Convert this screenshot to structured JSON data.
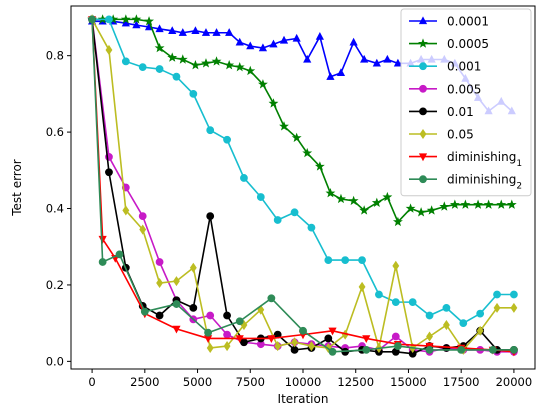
{
  "chart_data": {
    "type": "line",
    "xlabel": "Iteration",
    "ylabel": "Test error",
    "xlim": [
      -1000,
      21000
    ],
    "ylim": [
      -0.02,
      0.93
    ],
    "xticks": [
      0,
      2500,
      5000,
      7500,
      10000,
      12500,
      15000,
      17500,
      20000
    ],
    "xtick_labels": [
      "0",
      "2500",
      "5000",
      "7500",
      "10000",
      "12500",
      "15000",
      "17500",
      "20000"
    ],
    "yticks": [
      0.0,
      0.2,
      0.4,
      0.6,
      0.8
    ],
    "ytick_labels": [
      "0.0",
      "0.2",
      "0.4",
      "0.6",
      "0.8"
    ],
    "grid": false,
    "legend_position": "top-right",
    "series": [
      {
        "name": "0.0001",
        "label_html": "0.0001",
        "color": "#0000ff",
        "marker": "triangle-up",
        "x": [
          0,
          500,
          1000,
          1600,
          2100,
          2700,
          3200,
          3800,
          4300,
          4900,
          5400,
          5900,
          6500,
          7000,
          7500,
          8100,
          8600,
          9100,
          9700,
          10200,
          10800,
          11300,
          11800,
          12400,
          12900,
          13500,
          14000,
          14500,
          15100,
          15600,
          16100,
          16700,
          17200,
          17700,
          18300,
          18800,
          19400,
          19900
        ],
        "values": [
          0.89,
          0.89,
          0.89,
          0.885,
          0.88,
          0.875,
          0.87,
          0.865,
          0.86,
          0.865,
          0.86,
          0.86,
          0.86,
          0.835,
          0.825,
          0.82,
          0.83,
          0.84,
          0.845,
          0.79,
          0.85,
          0.745,
          0.755,
          0.835,
          0.79,
          0.78,
          0.79,
          0.78,
          0.78,
          0.79,
          0.79,
          0.79,
          0.78,
          0.74,
          0.69,
          0.655,
          0.68,
          0.655
        ]
      },
      {
        "name": "0.0005",
        "label_html": "0.0005",
        "color": "#008000",
        "marker": "star",
        "x": [
          0,
          500,
          1000,
          1600,
          2100,
          2700,
          3200,
          3800,
          4300,
          4900,
          5400,
          5900,
          6500,
          7000,
          7500,
          8100,
          8600,
          9100,
          9700,
          10200,
          10800,
          11300,
          11800,
          12400,
          12900,
          13500,
          14000,
          14500,
          15100,
          15600,
          16100,
          16700,
          17200,
          17700,
          18300,
          18800,
          19400,
          19900
        ],
        "values": [
          0.895,
          0.895,
          0.895,
          0.895,
          0.895,
          0.89,
          0.82,
          0.795,
          0.79,
          0.775,
          0.78,
          0.785,
          0.775,
          0.77,
          0.76,
          0.725,
          0.675,
          0.615,
          0.585,
          0.545,
          0.51,
          0.44,
          0.425,
          0.42,
          0.395,
          0.415,
          0.43,
          0.365,
          0.4,
          0.39,
          0.395,
          0.405,
          0.41,
          0.41,
          0.41,
          0.41,
          0.41,
          0.41
        ]
      },
      {
        "name": "0.001",
        "label_html": "0.001",
        "color": "#17becf",
        "marker": "circle",
        "x": [
          0,
          800,
          1600,
          2400,
          3200,
          4000,
          4800,
          5600,
          6400,
          7200,
          8000,
          8800,
          9600,
          10400,
          11200,
          12000,
          12800,
          13600,
          14400,
          15200,
          16000,
          16800,
          17600,
          18400,
          19200,
          20000
        ],
        "values": [
          0.895,
          0.895,
          0.785,
          0.77,
          0.765,
          0.745,
          0.7,
          0.605,
          0.58,
          0.48,
          0.43,
          0.37,
          0.39,
          0.35,
          0.265,
          0.265,
          0.265,
          0.175,
          0.155,
          0.155,
          0.12,
          0.14,
          0.1,
          0.125,
          0.175,
          0.175
        ]
      },
      {
        "name": "0.005",
        "label_html": "0.005",
        "color": "#c71ac7",
        "marker": "circle",
        "x": [
          0,
          800,
          1600,
          2400,
          3200,
          4000,
          4800,
          5600,
          6400,
          7200,
          8000,
          8800,
          9600,
          10400,
          11200,
          12000,
          12800,
          13600,
          14400,
          15200,
          16000,
          16800,
          17600,
          18400,
          19200,
          20000
        ],
        "values": [
          0.895,
          0.535,
          0.455,
          0.38,
          0.26,
          0.16,
          0.11,
          0.12,
          0.07,
          0.05,
          0.045,
          0.04,
          0.05,
          0.045,
          0.04,
          0.035,
          0.04,
          0.03,
          0.065,
          0.03,
          0.025,
          0.035,
          0.03,
          0.03,
          0.025,
          0.025
        ]
      },
      {
        "name": "0.01",
        "label_html": "0.01",
        "color": "#000000",
        "marker": "circle",
        "x": [
          0,
          800,
          1600,
          2400,
          3200,
          4000,
          4800,
          5600,
          6400,
          7200,
          8000,
          8800,
          9600,
          10400,
          11200,
          12000,
          12800,
          13600,
          14400,
          15200,
          16000,
          16800,
          17600,
          18400,
          19200,
          20000
        ],
        "values": [
          0.895,
          0.495,
          0.245,
          0.145,
          0.12,
          0.16,
          0.14,
          0.38,
          0.12,
          0.05,
          0.06,
          0.07,
          0.03,
          0.035,
          0.06,
          0.025,
          0.03,
          0.025,
          0.025,
          0.02,
          0.04,
          0.035,
          0.04,
          0.08,
          0.03,
          0.03
        ]
      },
      {
        "name": "0.05",
        "label_html": "0.05",
        "color": "#bcbd22",
        "marker": "diamond",
        "x": [
          0,
          800,
          1600,
          2400,
          3200,
          4000,
          4800,
          5600,
          6400,
          7200,
          8000,
          8800,
          9600,
          10400,
          11200,
          12000,
          12800,
          13600,
          14400,
          15200,
          16000,
          16800,
          17600,
          18400,
          19200,
          20000
        ],
        "values": [
          0.895,
          0.815,
          0.395,
          0.345,
          0.205,
          0.21,
          0.245,
          0.035,
          0.04,
          0.095,
          0.135,
          0.04,
          0.05,
          0.04,
          0.035,
          0.07,
          0.195,
          0.035,
          0.25,
          0.035,
          0.065,
          0.095,
          0.03,
          0.08,
          0.14,
          0.14
        ]
      },
      {
        "name": "diminishing1",
        "label_html": "diminishing<tspan baseline-shift=\"sub\" font-size=\"9\">1</tspan>",
        "color": "#ff0000",
        "marker": "triangle-down",
        "x": [
          0,
          500,
          1100,
          2500,
          4000,
          5500,
          7000,
          8500,
          10000,
          11400,
          13000,
          14500,
          16000,
          17500,
          19000,
          20000
        ],
        "values": [
          0.895,
          0.32,
          0.27,
          0.125,
          0.085,
          0.06,
          0.06,
          0.06,
          0.07,
          0.08,
          0.06,
          0.045,
          0.04,
          0.035,
          0.03,
          0.025
        ]
      },
      {
        "name": "diminishing2",
        "label_html": "diminishing<tspan baseline-shift=\"sub\" font-size=\"9\">2</tspan>",
        "color": "#2e8b57",
        "marker": "circle",
        "x": [
          0,
          500,
          1300,
          2500,
          4000,
          5500,
          7000,
          8500,
          10000,
          11400,
          13000,
          14500,
          16000,
          17500,
          19000,
          20000
        ],
        "values": [
          0.895,
          0.26,
          0.28,
          0.13,
          0.15,
          0.075,
          0.105,
          0.165,
          0.08,
          0.025,
          0.03,
          0.04,
          0.03,
          0.03,
          0.03,
          0.03
        ]
      }
    ]
  }
}
